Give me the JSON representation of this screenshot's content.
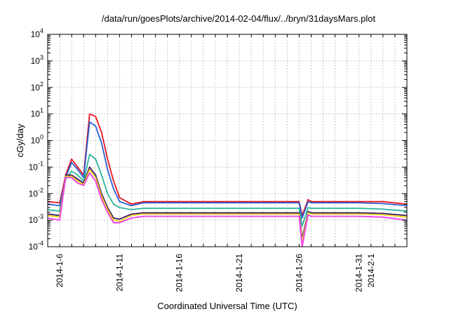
{
  "chart_data": {
    "type": "line",
    "title": "/data/run/goesPlots/archive/2014-02-04/flux/../bryn/31daysMars.plot",
    "xlabel": "Coordinated Universal Time (UTC)",
    "ylabel": "cGy/day",
    "y_scale": "log",
    "ylim": [
      0.0001,
      10000
    ],
    "y_ticks": [
      {
        "base": "10",
        "exp": "-4"
      },
      {
        "base": "10",
        "exp": "-3"
      },
      {
        "base": "10",
        "exp": "-2"
      },
      {
        "base": "10",
        "exp": "-1"
      },
      {
        "base": "10",
        "exp": "0"
      },
      {
        "base": "10",
        "exp": "1"
      },
      {
        "base": "10",
        "exp": "2"
      },
      {
        "base": "10",
        "exp": "3"
      },
      {
        "base": "10",
        "exp": "4"
      }
    ],
    "xlim": [
      "2014-01-05",
      "2014-02-04"
    ],
    "x_ticks": [
      "2014-1-6",
      "2014-1-11",
      "2014-1-16",
      "2014-1-21",
      "2014-1-26",
      "2014-1-31",
      "2014-2-1"
    ],
    "x_tick_dates": [
      "2014-01-06",
      "2014-01-11",
      "2014-01-16",
      "2014-01-21",
      "2014-01-26",
      "2014-01-31",
      "2014-02-01"
    ],
    "grid": true,
    "legend": "none",
    "x_dates": [
      "2014-01-05",
      "2014-01-06",
      "2014-01-06T12:00",
      "2014-01-07",
      "2014-01-07T12:00",
      "2014-01-08",
      "2014-01-08T12:00",
      "2014-01-09",
      "2014-01-09T12:00",
      "2014-01-10",
      "2014-01-10T12:00",
      "2014-01-11",
      "2014-01-12",
      "2014-01-13",
      "2014-01-15",
      "2014-01-17",
      "2014-01-19",
      "2014-01-21",
      "2014-01-23",
      "2014-01-25",
      "2014-01-26",
      "2014-01-26T06:00",
      "2014-01-26T18:00",
      "2014-01-27",
      "2014-01-29",
      "2014-01-31",
      "2014-02-02",
      "2014-02-04"
    ],
    "series": [
      {
        "color": "#e8141e",
        "values": [
          0.005,
          0.0045,
          0.05,
          0.2,
          0.1,
          0.05,
          10,
          8,
          2,
          0.2,
          0.03,
          0.007,
          0.004,
          0.005,
          0.005,
          0.005,
          0.005,
          0.005,
          0.005,
          0.005,
          0.005,
          0.0015,
          0.006,
          0.005,
          0.005,
          0.005,
          0.005,
          0.004
        ]
      },
      {
        "color": "#2a5fd6",
        "values": [
          0.004,
          0.0035,
          0.04,
          0.15,
          0.08,
          0.04,
          5,
          3.5,
          0.8,
          0.08,
          0.015,
          0.005,
          0.0035,
          0.0045,
          0.0045,
          0.0045,
          0.0045,
          0.0045,
          0.0045,
          0.0045,
          0.0045,
          0.0012,
          0.005,
          0.0045,
          0.0045,
          0.0045,
          0.0042,
          0.0035
        ]
      },
      {
        "color": "#2bb5a0",
        "values": [
          0.0025,
          0.0022,
          0.035,
          0.07,
          0.05,
          0.03,
          0.3,
          0.2,
          0.05,
          0.01,
          0.004,
          0.003,
          0.0025,
          0.0028,
          0.0028,
          0.0028,
          0.0028,
          0.0028,
          0.0028,
          0.0028,
          0.0028,
          0.0006,
          0.003,
          0.0028,
          0.0028,
          0.0028,
          0.0026,
          0.0022
        ]
      },
      {
        "color": "#3a1a5a",
        "values": [
          0.0017,
          0.0015,
          0.05,
          0.05,
          0.035,
          0.025,
          0.1,
          0.05,
          0.01,
          0.003,
          0.0012,
          0.0011,
          0.0017,
          0.0019,
          0.0019,
          0.0019,
          0.0019,
          0.0019,
          0.0019,
          0.0019,
          0.0019,
          0.0002,
          0.0021,
          0.0019,
          0.0019,
          0.0019,
          0.0018,
          0.0015
        ]
      },
      {
        "color": "#f0d21e",
        "values": [
          0.0015,
          0.0013,
          0.045,
          0.045,
          0.03,
          0.022,
          0.08,
          0.04,
          0.008,
          0.0025,
          0.001,
          0.0009,
          0.0015,
          0.0017,
          0.0017,
          0.0017,
          0.0017,
          0.0017,
          0.0017,
          0.0017,
          0.0017,
          0.00015,
          0.0019,
          0.0017,
          0.0017,
          0.0017,
          0.0016,
          0.0013
        ]
      },
      {
        "color": "#f03cf0",
        "values": [
          0.0012,
          0.001,
          0.04,
          0.04,
          0.025,
          0.02,
          0.06,
          0.03,
          0.006,
          0.002,
          0.0008,
          0.0008,
          0.0012,
          0.0014,
          0.0014,
          0.0014,
          0.0014,
          0.0014,
          0.0014,
          0.0014,
          0.0014,
          0.0001,
          0.0016,
          0.0014,
          0.0014,
          0.0014,
          0.0013,
          0.001
        ]
      }
    ]
  }
}
